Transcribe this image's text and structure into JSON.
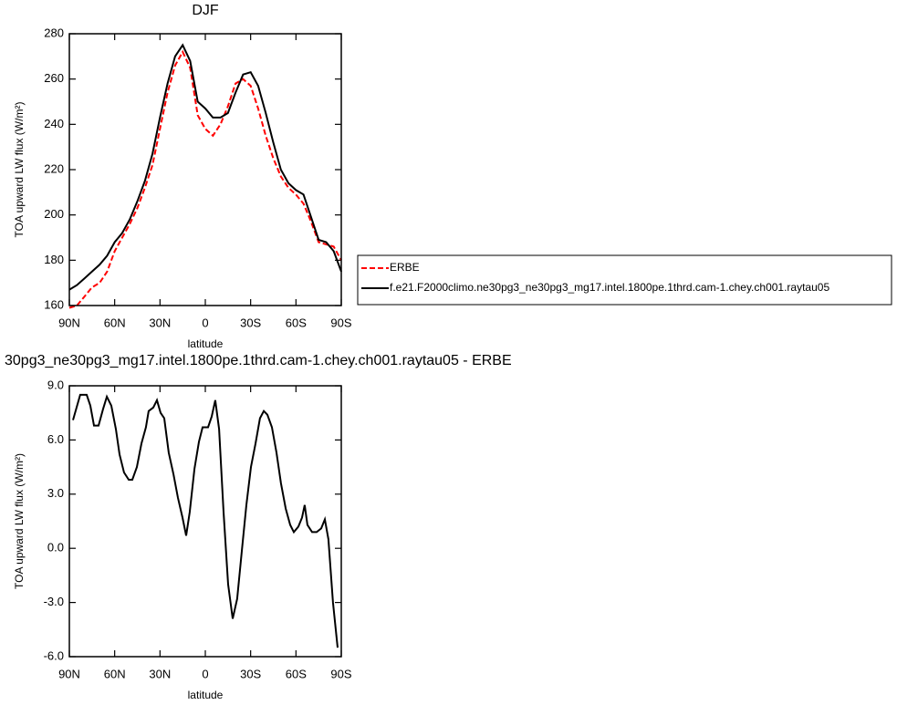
{
  "chart_data": [
    {
      "type": "line",
      "title": "DJF",
      "xlabel": "latitude",
      "ylabel": "TOA upward LW flux (W/m²)",
      "x": [
        90,
        85,
        80,
        75,
        70,
        65,
        60,
        55,
        50,
        45,
        40,
        35,
        30,
        25,
        20,
        15,
        10,
        5,
        0,
        -5,
        -10,
        -15,
        -20,
        -25,
        -30,
        -35,
        -40,
        -45,
        -50,
        -55,
        -60,
        -65,
        -70,
        -75,
        -80,
        -85,
        -90
      ],
      "series": [
        {
          "name": "ERBE",
          "color": "#ff0000",
          "dash": "dashed",
          "values": [
            159,
            160,
            164,
            168,
            170,
            175,
            184,
            190,
            196,
            203,
            212,
            222,
            238,
            254,
            266,
            272,
            265,
            244,
            238,
            235,
            240,
            248,
            258,
            260,
            257,
            247,
            235,
            225,
            217,
            212,
            209,
            205,
            197,
            188,
            187,
            186,
            180
          ]
        },
        {
          "name": "f.e21.F2000climo.ne30pg3_ne30pg3_mg17.intel.1800pe.1thrd.cam-1.chey.ch001.raytau05",
          "color": "#000000",
          "dash": "solid",
          "values": [
            167,
            169,
            172,
            175,
            178,
            182,
            188,
            192,
            198,
            206,
            215,
            227,
            243,
            258,
            270,
            275,
            268,
            250,
            247,
            243,
            243,
            245,
            254,
            262,
            263,
            257,
            245,
            232,
            220,
            214,
            211,
            209,
            199,
            189,
            188,
            184,
            175
          ]
        }
      ],
      "xlim": [
        90,
        -90
      ],
      "xticks": [
        {
          "value": 90,
          "label": "90N"
        },
        {
          "value": 60,
          "label": "60N"
        },
        {
          "value": 30,
          "label": "30N"
        },
        0,
        {
          "value": -30,
          "label": "30S"
        },
        {
          "value": -60,
          "label": "60S"
        },
        {
          "value": -90,
          "label": "90S"
        }
      ],
      "ylim": [
        160,
        280
      ],
      "yticks": [
        160,
        180,
        200,
        220,
        240,
        260,
        280
      ],
      "legend": "outside-right"
    },
    {
      "type": "line",
      "title": "30pg3_ne30pg3_mg17.intel.1800pe.1thrd.cam-1.chey.ch001.raytau05 - ERBE",
      "xlabel": "latitude",
      "ylabel": "TOA upward LW flux (W/m²)",
      "x": [
        87.6,
        82.8,
        78.5,
        76.1,
        73.7,
        70.7,
        67.7,
        65.2,
        62.2,
        59.2,
        56.8,
        53.8,
        50.7,
        48.3,
        45.3,
        42.3,
        39.3,
        37.5,
        34.4,
        32,
        29.6,
        27.2,
        24.2,
        21.1,
        18.1,
        15.1,
        12.7,
        10.3,
        7.2,
        4.2,
        1.8,
        -1.8,
        -4.2,
        -6.6,
        -9.1,
        -12.1,
        -15.1,
        -18.1,
        -21.1,
        -24.2,
        -27.2,
        -30.2,
        -33.2,
        -36.2,
        -38.7,
        -41.1,
        -44.1,
        -47.1,
        -50.1,
        -53.2,
        -56.2,
        -58.6,
        -61.6,
        -64,
        -65.8,
        -67.6,
        -70.7,
        -73.7,
        -76.7,
        -79.1,
        -81.5,
        -84.5,
        -87.6
      ],
      "series": [
        {
          "color": "#000000",
          "dash": "solid",
          "values": [
            7.1,
            8.5,
            8.5,
            7.9,
            6.8,
            6.8,
            7.7,
            8.4,
            7.9,
            6.6,
            5.2,
            4.2,
            3.8,
            3.8,
            4.5,
            5.8,
            6.7,
            7.6,
            7.8,
            8.2,
            7.5,
            7.2,
            5.3,
            4.1,
            2.8,
            1.7,
            0.7,
            2.0,
            4.4,
            5.9,
            6.7,
            6.7,
            7.3,
            8.2,
            6.6,
            2.0,
            -2.0,
            -3.9,
            -2.8,
            -0.1,
            2.4,
            4.5,
            5.8,
            7.2,
            7.6,
            7.4,
            6.7,
            5.3,
            3.6,
            2.2,
            1.3,
            0.9,
            1.2,
            1.7,
            2.4,
            1.3,
            0.9,
            0.9,
            1.1,
            1.6,
            0.5,
            -3.0,
            -5.5
          ]
        }
      ],
      "xlim": [
        90,
        -90
      ],
      "xticks": [
        {
          "value": 90,
          "label": "90N"
        },
        {
          "value": 60,
          "label": "60N"
        },
        {
          "value": 30,
          "label": "30N"
        },
        0,
        {
          "value": -30,
          "label": "30S"
        },
        {
          "value": -60,
          "label": "60S"
        },
        {
          "value": -90,
          "label": "90S"
        }
      ],
      "ylim": [
        -6,
        9
      ],
      "yticks": [
        {
          "value": -6,
          "label": "-6.0"
        },
        {
          "value": -3,
          "label": "-3.0"
        },
        {
          "value": 0,
          "label": "0.0"
        },
        {
          "value": 3,
          "label": "3.0"
        },
        {
          "value": 6,
          "label": "6.0"
        },
        {
          "value": 9,
          "label": "9.0"
        }
      ]
    }
  ]
}
